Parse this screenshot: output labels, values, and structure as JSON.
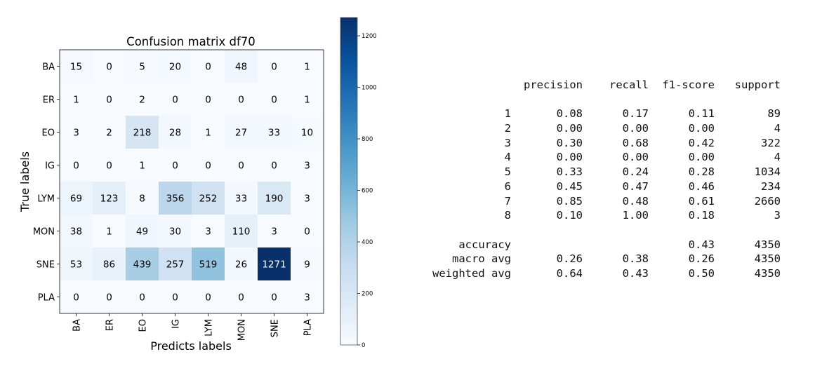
{
  "chart_data": {
    "type": "heatmap",
    "title": "Confusion matrix df70",
    "xlabel": "Predicts labels",
    "ylabel": "True labels",
    "x_categories": [
      "BA",
      "ER",
      "EO",
      "IG",
      "LYM",
      "MON",
      "SNE",
      "PLA"
    ],
    "y_categories": [
      "BA",
      "ER",
      "EO",
      "IG",
      "LYM",
      "MON",
      "SNE",
      "PLA"
    ],
    "matrix": [
      [
        15,
        0,
        5,
        20,
        0,
        48,
        0,
        1
      ],
      [
        1,
        0,
        2,
        0,
        0,
        0,
        0,
        1
      ],
      [
        3,
        2,
        218,
        28,
        1,
        27,
        33,
        10
      ],
      [
        0,
        0,
        1,
        0,
        0,
        0,
        0,
        3
      ],
      [
        69,
        123,
        8,
        356,
        252,
        33,
        190,
        3
      ],
      [
        38,
        1,
        49,
        30,
        3,
        110,
        3,
        0
      ],
      [
        53,
        86,
        439,
        257,
        519,
        26,
        1271,
        9
      ],
      [
        0,
        0,
        0,
        0,
        0,
        0,
        0,
        3
      ]
    ],
    "colormap": "Blues",
    "colorbar": {
      "range": [
        0,
        1271
      ],
      "ticks": [
        "0",
        "200",
        "400",
        "600",
        "800",
        "1000",
        "1200"
      ]
    },
    "colors": {
      "low": "#f7fbff",
      "high": "#08306b"
    }
  },
  "report": {
    "headers": [
      "precision",
      "recall",
      "f1-score",
      "support"
    ],
    "rows": [
      [
        "1",
        "0.08",
        "0.17",
        "0.11",
        "89"
      ],
      [
        "2",
        "0.00",
        "0.00",
        "0.00",
        "4"
      ],
      [
        "3",
        "0.30",
        "0.68",
        "0.42",
        "322"
      ],
      [
        "4",
        "0.00",
        "0.00",
        "0.00",
        "4"
      ],
      [
        "5",
        "0.33",
        "0.24",
        "0.28",
        "1034"
      ],
      [
        "6",
        "0.45",
        "0.47",
        "0.46",
        "234"
      ],
      [
        "7",
        "0.85",
        "0.48",
        "0.61",
        "2660"
      ],
      [
        "8",
        "0.10",
        "1.00",
        "0.18",
        "3"
      ]
    ],
    "summary": [
      [
        "accuracy",
        "",
        "",
        "0.43",
        "4350"
      ],
      [
        "macro avg",
        "0.26",
        "0.38",
        "0.26",
        "4350"
      ],
      [
        "weighted avg",
        "0.64",
        "0.43",
        "0.50",
        "4350"
      ]
    ]
  }
}
